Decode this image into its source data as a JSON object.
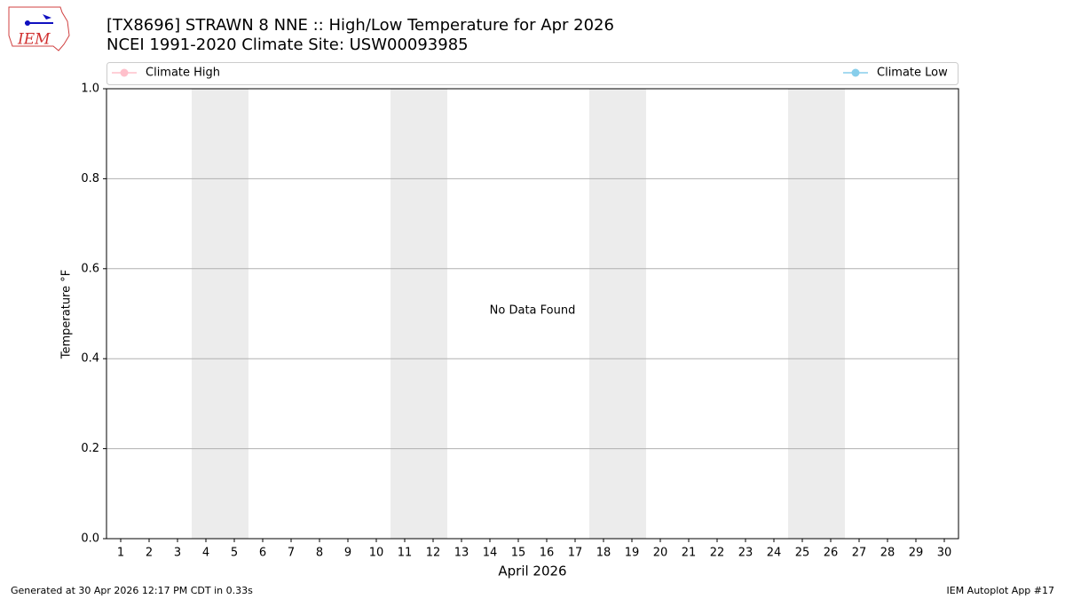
{
  "chart_data": {
    "type": "line",
    "title": "[TX8696] STRAWN 8 NNE :: High/Low Temperature for Apr 2026",
    "subtitle": "NCEI 1991-2020 Climate Site: USW00093985",
    "xlabel": "April 2026",
    "ylabel": "Temperature °F",
    "annotation": "No Data Found",
    "categories": [
      "1",
      "2",
      "3",
      "4",
      "5",
      "6",
      "7",
      "8",
      "9",
      "10",
      "11",
      "12",
      "13",
      "14",
      "15",
      "16",
      "17",
      "18",
      "19",
      "20",
      "21",
      "22",
      "23",
      "24",
      "25",
      "26",
      "27",
      "28",
      "29",
      "30"
    ],
    "series": [
      {
        "name": "Climate High",
        "color": "#ffc0cb",
        "values": [
          null,
          null,
          null,
          null,
          null,
          null,
          null,
          null,
          null,
          null,
          null,
          null,
          null,
          null,
          null,
          null,
          null,
          null,
          null,
          null,
          null,
          null,
          null,
          null,
          null,
          null,
          null,
          null,
          null,
          null
        ]
      },
      {
        "name": "Climate Low",
        "color": "#87ceeb",
        "values": [
          null,
          null,
          null,
          null,
          null,
          null,
          null,
          null,
          null,
          null,
          null,
          null,
          null,
          null,
          null,
          null,
          null,
          null,
          null,
          null,
          null,
          null,
          null,
          null,
          null,
          null,
          null,
          null,
          null,
          null
        ]
      }
    ],
    "shaded_categories": [
      "4",
      "5",
      "11",
      "12",
      "18",
      "19",
      "25",
      "26"
    ],
    "shade_color": "#ececec",
    "ylim": [
      0,
      1
    ],
    "yticks": [
      {
        "value": 0,
        "label": "0.0"
      },
      {
        "value": 0.2,
        "label": "0.2"
      },
      {
        "value": 0.4,
        "label": "0.4"
      },
      {
        "value": 0.6,
        "label": "0.6"
      },
      {
        "value": 0.8,
        "label": "0.8"
      },
      {
        "value": 1,
        "label": "1.0"
      }
    ],
    "grid": true,
    "legend": "top"
  },
  "logo_text": "IEM",
  "footer": {
    "left": "Generated at 30 Apr 2026 12:17 PM CDT in 0.33s",
    "right": "IEM Autoplot App #17"
  }
}
